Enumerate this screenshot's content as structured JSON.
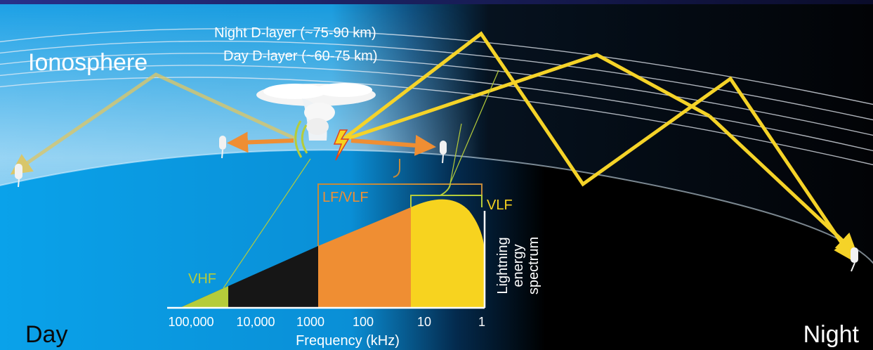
{
  "labels": {
    "ionosphere": "Ionosphere",
    "night_layer": "Night D-layer (~75-90 km)",
    "day_layer": "Day D-layer (~60-75 km)",
    "lf_vlf": "LF/VLF",
    "vlf": "VLF",
    "vhf": "VHF",
    "spectrum_axis": [
      "Lightning",
      "energy",
      "spectrum"
    ],
    "x_axis": "Frequency (kHz)",
    "day": "Day",
    "night": "Night"
  },
  "frequency_ticks": [
    "100,000",
    "10,000",
    "1000",
    "100",
    "10",
    "1"
  ],
  "colors": {
    "vhf": "#b5cc3a",
    "lf_vlf": "#ef8e33",
    "vlf": "#f7d31f",
    "skywave": "#f5d328",
    "day_sky": "#1a9ee3"
  }
}
